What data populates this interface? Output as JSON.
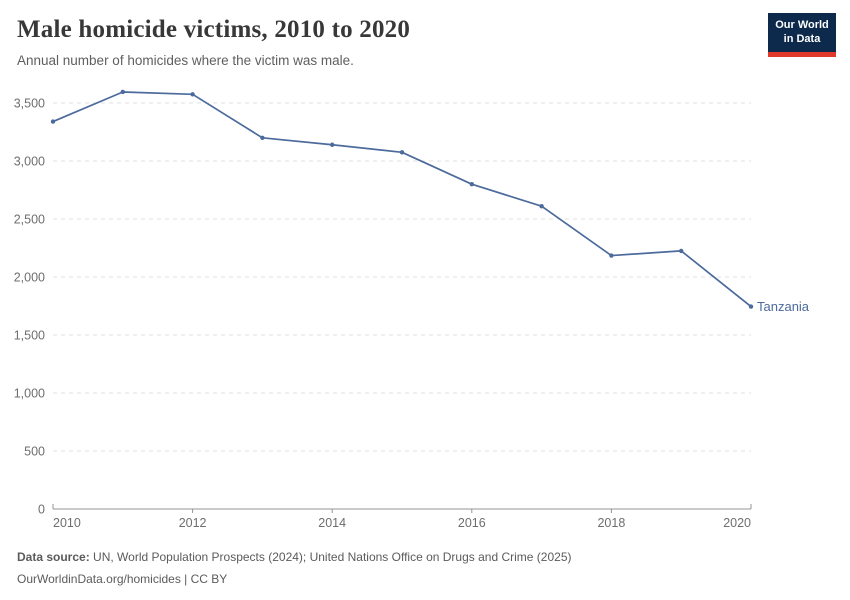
{
  "header": {
    "title": "Male homicide victims, 2010 to 2020",
    "subtitle": "Annual number of homicides where the victim was male.",
    "logo": {
      "line1": "Our World",
      "line2": "in Data",
      "bg_color": "#0d2a4d",
      "accent_color": "#e0392c"
    }
  },
  "chart_data": {
    "type": "line",
    "title": "Male homicide victims, 2010 to 2020",
    "subtitle": "Annual number of homicides where the victim was male.",
    "x": [
      2010,
      2011,
      2012,
      2013,
      2014,
      2015,
      2016,
      2017,
      2018,
      2019,
      2020
    ],
    "series": [
      {
        "name": "Tanzania",
        "color": "#4c6a9c",
        "values": [
          3340,
          3595,
          3575,
          3200,
          3140,
          3075,
          2800,
          2610,
          2185,
          2225,
          1745
        ]
      }
    ],
    "xlabel": "",
    "ylabel": "",
    "xlim": [
      2010,
      2020
    ],
    "ylim": [
      0,
      3500
    ],
    "yticks": [
      0,
      500,
      1000,
      1500,
      2000,
      2500,
      3000,
      3500
    ],
    "xticks": [
      2010,
      2012,
      2014,
      2016,
      2018,
      2020
    ],
    "grid": "horizontal-dashed",
    "legend_position": "end-of-line-label",
    "end_label": "Tanzania"
  },
  "footer": {
    "datasource_label": "Data source:",
    "datasource_text": " UN, World Population Prospects (2024); United Nations Office on Drugs and Crime (2025)",
    "attribution": "OurWorldinData.org/homicides | CC BY"
  }
}
